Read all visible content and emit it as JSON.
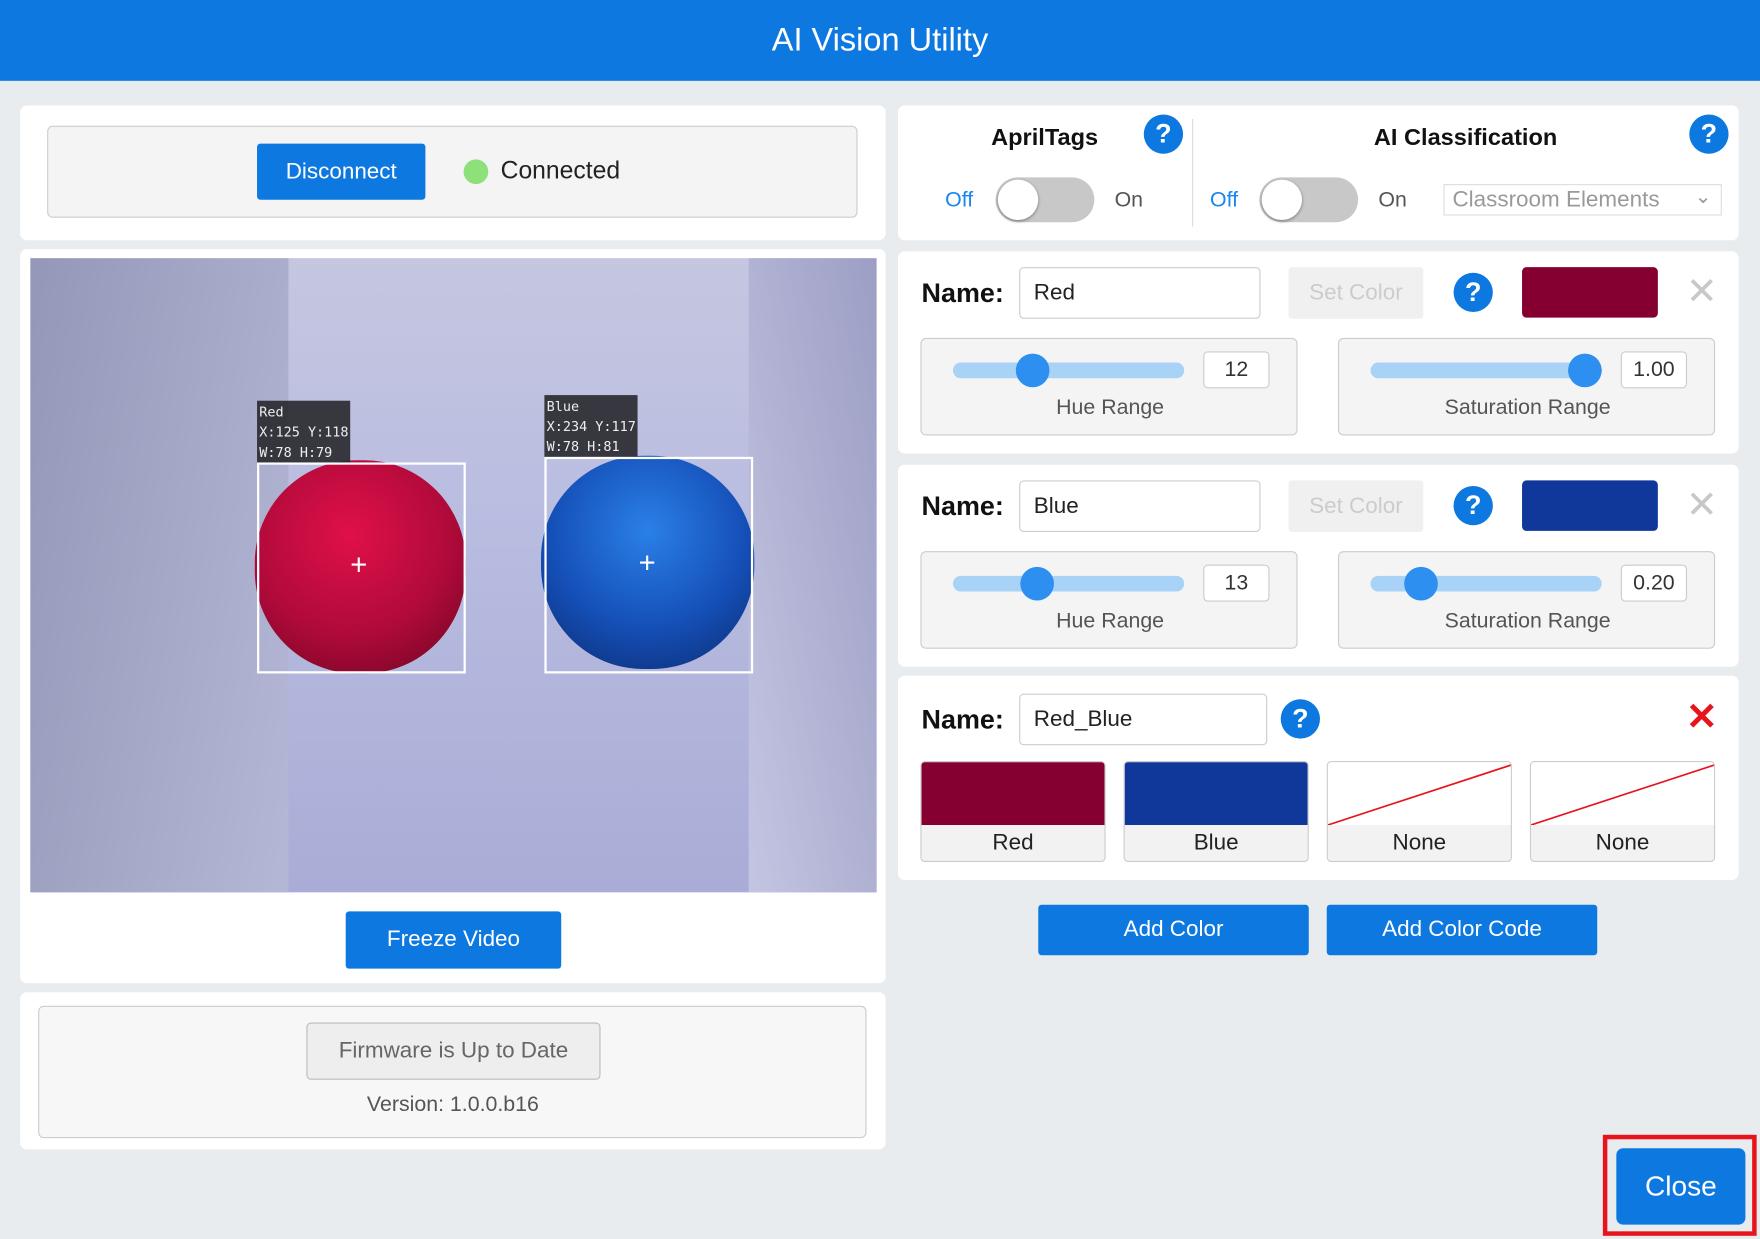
{
  "header": {
    "title": "AI Vision Utility"
  },
  "connection": {
    "disconnect_label": "Disconnect",
    "status": "Connected",
    "status_color": "#8ee07a"
  },
  "video": {
    "detections": [
      {
        "name": "Red",
        "line1": "Red",
        "line2": "X:125 Y:118",
        "line3": "W:78 H:79"
      },
      {
        "name": "Blue",
        "line1": "Blue",
        "line2": "X:234 Y:117",
        "line3": "W:78 H:81"
      }
    ],
    "freeze_label": "Freeze Video"
  },
  "firmware": {
    "button_label": "Firmware is Up to Date",
    "version": "Version: 1.0.0.b16"
  },
  "apriltags": {
    "title": "AprilTags",
    "off": "Off",
    "on": "On",
    "enabled": false
  },
  "ai_classification": {
    "title": "AI Classification",
    "off": "Off",
    "on": "On",
    "enabled": false,
    "model": "Classroom Elements"
  },
  "colors": [
    {
      "name_label": "Name:",
      "name": "Red",
      "set_color": "Set Color",
      "swatch": "#850030",
      "hue_value": "12",
      "hue_label": "Hue Range",
      "hue_fraction": 0.32,
      "sat_value": "1.00",
      "sat_label": "Saturation Range",
      "sat_fraction": 1.0
    },
    {
      "name_label": "Name:",
      "name": "Blue",
      "set_color": "Set Color",
      "swatch": "#10389a",
      "hue_value": "13",
      "hue_label": "Hue Range",
      "hue_fraction": 0.34,
      "sat_value": "0.20",
      "sat_label": "Saturation Range",
      "sat_fraction": 0.17
    }
  ],
  "color_code": {
    "name_label": "Name:",
    "name": "Red_Blue",
    "slots": [
      {
        "label": "Red",
        "color": "#850030"
      },
      {
        "label": "Blue",
        "color": "#10389a"
      },
      {
        "label": "None",
        "color": "none"
      },
      {
        "label": "None",
        "color": "none"
      }
    ]
  },
  "actions": {
    "add_color": "Add Color",
    "add_color_code": "Add Color Code",
    "close": "Close"
  }
}
